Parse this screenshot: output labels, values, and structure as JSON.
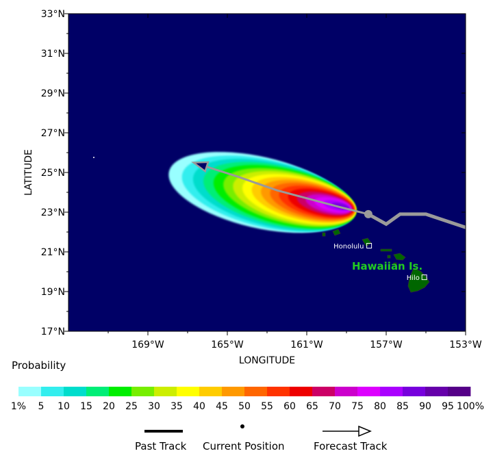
{
  "map": {
    "lat_labels": [
      "33°N",
      "31°N",
      "29°N",
      "27°N",
      "25°N",
      "23°N",
      "21°N",
      "19°N",
      "17°N"
    ],
    "lon_labels": [
      "169°W",
      "165°W",
      "161°W",
      "157°W",
      "153°W"
    ],
    "x_axis_title": "LONGITUDE",
    "y_axis_title": "LATITUDE",
    "ocean_color": "#000066",
    "land_color": "#006600",
    "places": [
      {
        "name": "Honolulu",
        "lon": -157.86,
        "lat": 21.31
      },
      {
        "name": "Hilo",
        "lon": -155.08,
        "lat": 19.72
      }
    ],
    "region_label": "Hawaiian Is.",
    "region_label_color": "#22cc22",
    "current_position": {
      "lon": -157.9,
      "lat": 22.9
    },
    "past_track": [
      {
        "lon": -152.9,
        "lat": 22.2
      },
      {
        "lon": -155.0,
        "lat": 22.9
      },
      {
        "lon": -156.3,
        "lat": 22.9
      },
      {
        "lon": -157.0,
        "lat": 22.4
      },
      {
        "lon": -157.9,
        "lat": 22.9
      }
    ],
    "forecast_track": [
      {
        "lon": -157.9,
        "lat": 22.9
      },
      {
        "lon": -159.5,
        "lat": 23.3
      },
      {
        "lon": -161.0,
        "lat": 23.7
      },
      {
        "lon": -162.5,
        "lat": 24.1
      },
      {
        "lon": -164.5,
        "lat": 24.8
      },
      {
        "lon": -166.7,
        "lat": 25.5
      }
    ]
  },
  "legend": {
    "title": "Probability",
    "labels": [
      "1%",
      "5",
      "10",
      "15",
      "20",
      "25",
      "30",
      "35",
      "40",
      "45",
      "50",
      "55",
      "60",
      "65",
      "70",
      "75",
      "80",
      "85",
      "90",
      "95",
      "100%"
    ],
    "colors": [
      "#99ffff",
      "#33eeee",
      "#00ddcc",
      "#00ee77",
      "#00ee00",
      "#77ee00",
      "#ccee00",
      "#ffff00",
      "#ffcc00",
      "#ff9900",
      "#ff6600",
      "#ff3300",
      "#ee0000",
      "#cc0066",
      "#cc00cc",
      "#dd00ff",
      "#aa00ff",
      "#7700dd",
      "#6600aa",
      "#550088"
    ],
    "past_track_label": "Past Track",
    "current_position_label": "Current Position",
    "forecast_track_label": "Forecast Track"
  }
}
